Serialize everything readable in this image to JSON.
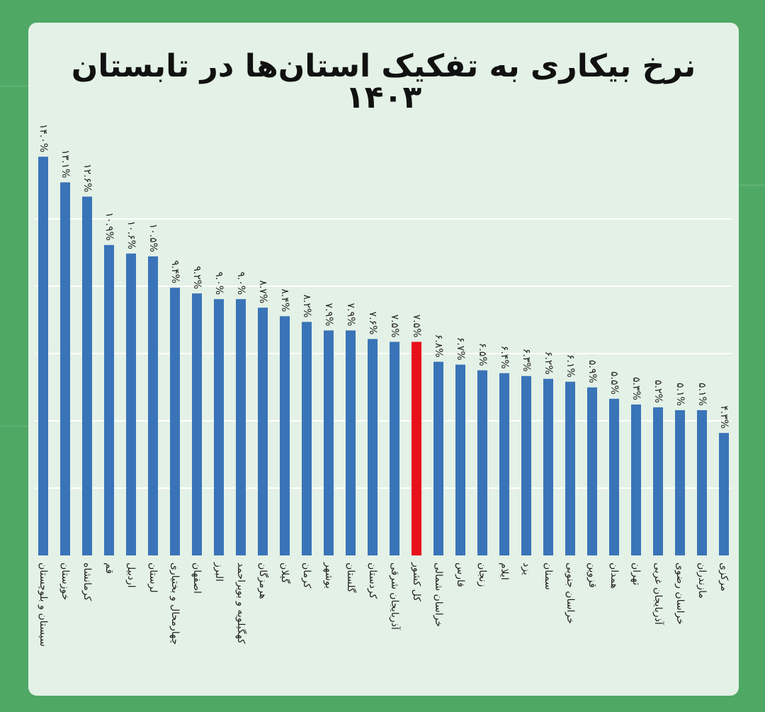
{
  "title": "نرخ بیکاری به تفکیک استان‌ها در تابستان ۱۴۰۳",
  "chart_data": {
    "type": "bar",
    "title": "نرخ بیکاری به تفکیک استان‌ها در تابستان ۱۴۰۳",
    "xlabel": "",
    "ylabel": "",
    "categories": [
      "سیستان و بلوچستان",
      "خوزستان",
      "کرمانشاه",
      "قم",
      "اردبیل",
      "لرستان",
      "چهارمحال و بختیاری",
      "اصفهان",
      "البرز",
      "کهگیلویه و بویراحمد",
      "هرمزگان",
      "گیلان",
      "کرمان",
      "بوشهر",
      "گلستان",
      "کردستان",
      "آذربایجان شرقی",
      "کل کشور",
      "خراسان شمالی",
      "فارس",
      "زنجان",
      "ایلام",
      "یزد",
      "سمنان",
      "خراسان جنوبی",
      "قزوین",
      "همدان",
      "تهران",
      "آذربایجان غربی",
      "خراسان رضوی",
      "مازندران",
      "مرکزی"
    ],
    "values": [
      14.0,
      13.1,
      12.6,
      10.9,
      10.6,
      10.5,
      9.4,
      9.2,
      9.0,
      9.0,
      8.7,
      8.4,
      8.2,
      7.9,
      7.9,
      7.6,
      7.5,
      7.5,
      6.8,
      6.7,
      6.5,
      6.4,
      6.3,
      6.2,
      6.1,
      5.9,
      5.5,
      5.3,
      5.2,
      5.1,
      5.1,
      4.3
    ],
    "value_labels": [
      "۱۴.۰%",
      "۱۳.۱%",
      "۱۲.۶%",
      "۱۰.۹%",
      "۱۰.۶%",
      "۱۰.۵%",
      "۹.۴%",
      "۹.۲%",
      "۹.۰%",
      "۹.۰%",
      "۸.۷%",
      "۸.۴%",
      "۸.۲%",
      "۷.۹%",
      "۷.۹%",
      "۷.۶%",
      "۷.۵%",
      "۷.۵%",
      "۶.۸%",
      "۶.۷%",
      "۶.۵%",
      "۶.۴%",
      "۶.۳%",
      "۶.۲%",
      "۶.۱%",
      "۵.۹%",
      "۵.۵%",
      "۵.۳%",
      "۵.۲%",
      "۵.۱%",
      "۵.۱%",
      "۴.۳%"
    ],
    "ylim": [
      0,
      14
    ],
    "highlight_index": 17,
    "colors": {
      "bar": "#3a74b8",
      "highlight": "#e8101a",
      "card": "#e3f1e6",
      "background": "#4fa864"
    },
    "grid": true,
    "legend": "none"
  }
}
